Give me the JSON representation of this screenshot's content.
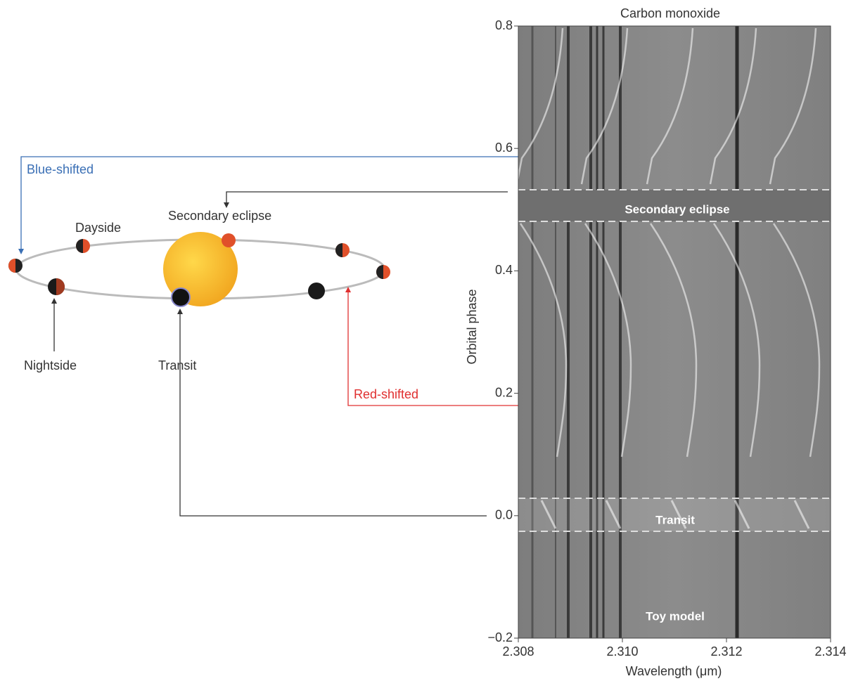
{
  "diagram": {
    "blue_shifted": "Blue-shifted",
    "dayside": "Dayside",
    "secondary_eclipse": "Secondary eclipse",
    "nightside": "Nightside",
    "transit": "Transit",
    "red_shifted": "Red-shifted"
  },
  "chart_data": {
    "type": "image",
    "title": "Carbon monoxide",
    "xlabel": "Wavelength (μm)",
    "ylabel": "Orbital phase",
    "xlim": [
      2.308,
      2.314
    ],
    "ylim": [
      -0.2,
      0.8
    ],
    "xticks": [
      2.308,
      {
        "value": 2.31,
        "label": "2.310"
      },
      2.312,
      2.314
    ],
    "yticks": [
      {
        "value": -0.2,
        "label": "−0.2"
      },
      {
        "value": 0,
        "label": "0.0"
      },
      0.2,
      0.4,
      0.6,
      0.8
    ],
    "annotations": [
      "Secondary eclipse",
      "Transit",
      "Toy model"
    ]
  }
}
